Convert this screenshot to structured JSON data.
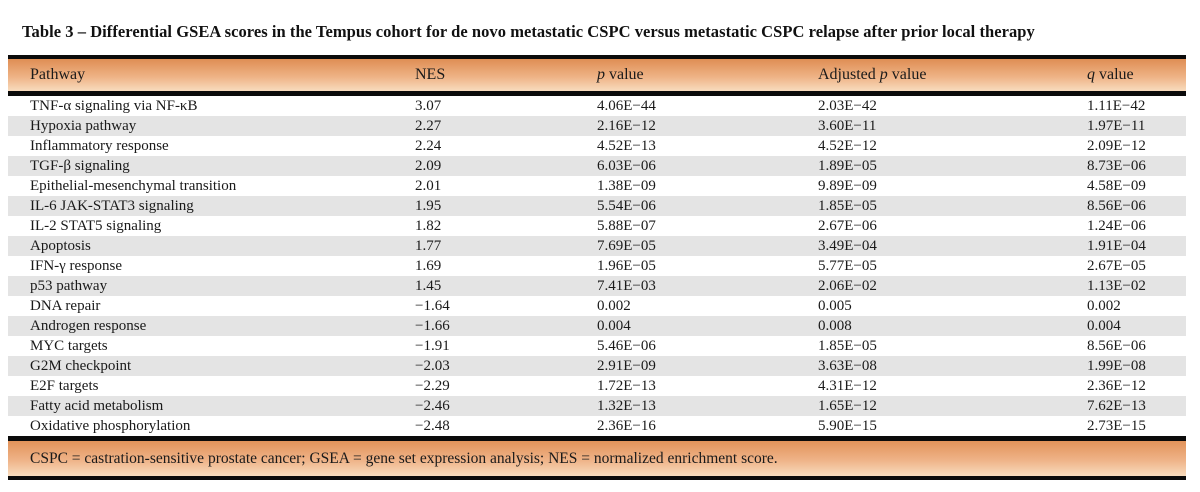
{
  "title": "Table 3 – Differential GSEA scores in the Tempus cohort for de novo metastatic CSPC versus metastatic CSPC relapse after prior local therapy",
  "table": {
    "columns": [
      {
        "id": "pathway",
        "parts": [
          {
            "text": "Pathway"
          }
        ]
      },
      {
        "id": "nes",
        "parts": [
          {
            "text": "NES"
          }
        ]
      },
      {
        "id": "p-value",
        "parts": [
          {
            "text": "p",
            "italic": true
          },
          {
            "text": " value"
          }
        ]
      },
      {
        "id": "adjusted-p-value",
        "parts": [
          {
            "text": "Adjusted "
          },
          {
            "text": "p",
            "italic": true
          },
          {
            "text": " value"
          }
        ]
      },
      {
        "id": "q-value",
        "parts": [
          {
            "text": "q",
            "italic": true
          },
          {
            "text": " value"
          }
        ]
      }
    ],
    "rows": [
      [
        "TNF-α signaling via NF-κB",
        "3.07",
        "4.06E−44",
        "2.03E−42",
        "1.11E−42"
      ],
      [
        "Hypoxia pathway",
        "2.27",
        "2.16E−12",
        "3.60E−11",
        "1.97E−11"
      ],
      [
        "Inflammatory response",
        "2.24",
        "4.52E−13",
        "4.52E−12",
        "2.09E−12"
      ],
      [
        "TGF-β signaling",
        "2.09",
        "6.03E−06",
        "1.89E−05",
        "8.73E−06"
      ],
      [
        "Epithelial-mesenchymal transition",
        "2.01",
        "1.38E−09",
        "9.89E−09",
        "4.58E−09"
      ],
      [
        "IL-6 JAK-STAT3 signaling",
        "1.95",
        "5.54E−06",
        "1.85E−05",
        "8.56E−06"
      ],
      [
        "IL-2 STAT5 signaling",
        "1.82",
        "5.88E−07",
        "2.67E−06",
        "1.24E−06"
      ],
      [
        "Apoptosis",
        "1.77",
        "7.69E−05",
        "3.49E−04",
        "1.91E−04"
      ],
      [
        "IFN-γ response",
        "1.69",
        "1.96E−05",
        "5.77E−05",
        "2.67E−05"
      ],
      [
        "p53 pathway",
        "1.45",
        "7.41E−03",
        "2.06E−02",
        "1.13E−02"
      ],
      [
        "DNA repair",
        "−1.64",
        "0.002",
        "0.005",
        "0.002"
      ],
      [
        "Androgen response",
        "−1.66",
        "0.004",
        "0.008",
        "0.004"
      ],
      [
        "MYC targets",
        "−1.91",
        "5.46E−06",
        "1.85E−05",
        "8.56E−06"
      ],
      [
        "G2M checkpoint",
        "−2.03",
        "2.91E−09",
        "3.63E−08",
        "1.99E−08"
      ],
      [
        "E2F targets",
        "−2.29",
        "1.72E−13",
        "4.31E−12",
        "2.36E−12"
      ],
      [
        "Fatty acid metabolism",
        "−2.46",
        "1.32E−13",
        "1.65E−12",
        "7.62E−13"
      ],
      [
        "Oxidative phosphorylation",
        "−2.48",
        "2.36E−16",
        "5.90E−15",
        "2.73E−15"
      ]
    ]
  },
  "footnote": "CSPC = castration-sensitive prostate cancer; GSEA = gene set expression analysis; NES = normalized enrichment score.",
  "colors": {
    "header_gradient_top": "#df8e54",
    "header_gradient_bottom": "#f8dcbe",
    "row_stripe": "#e4e4e4",
    "rule_bar": "#0b0b0b",
    "text": "#1a1a1a"
  }
}
